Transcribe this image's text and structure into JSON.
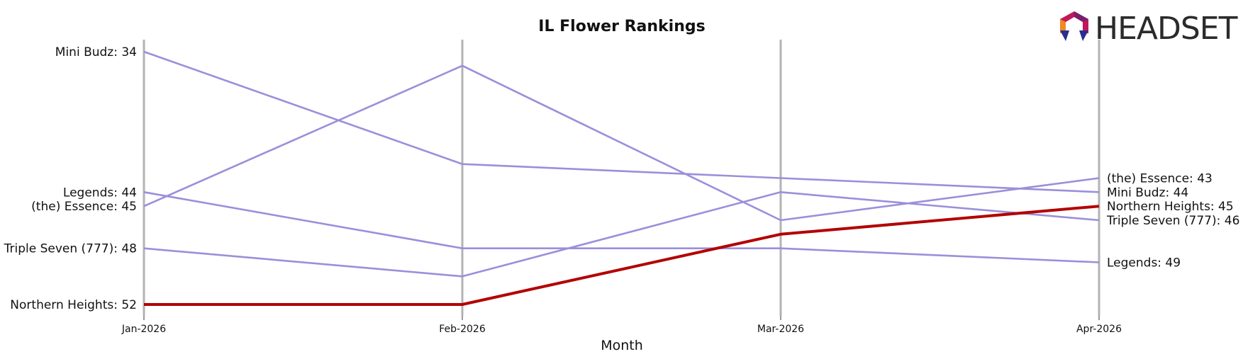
{
  "chart_data": {
    "type": "line",
    "title": "IL Flower Rankings",
    "xlabel": "Month",
    "ylabel": "",
    "categories": [
      "Jan-2026",
      "Feb-2026",
      "Mar-2026",
      "Apr-2026"
    ],
    "y_inverted": true,
    "series": [
      {
        "name": "Mini Budz",
        "values": [
          34,
          42,
          43,
          44
        ],
        "color": "#9b8fdb",
        "highlight": false
      },
      {
        "name": "(the) Essence",
        "values": [
          45,
          35,
          46,
          43
        ],
        "color": "#9b8fdb",
        "highlight": false
      },
      {
        "name": "Legends",
        "values": [
          44,
          48,
          48,
          49
        ],
        "color": "#9b8fdb",
        "highlight": false
      },
      {
        "name": "Triple Seven (777)",
        "values": [
          48,
          50,
          44,
          46
        ],
        "color": "#9b8fdb",
        "highlight": false
      },
      {
        "name": "Northern Heights",
        "values": [
          52,
          52,
          47,
          45
        ],
        "color": "#b30000",
        "highlight": true
      }
    ],
    "start_labels": [
      {
        "text": "Mini Budz: 34",
        "series": 0
      },
      {
        "text": "Legends: 44",
        "series": 2
      },
      {
        "text": "(the) Essence: 45",
        "series": 1
      },
      {
        "text": "Triple Seven (777): 48",
        "series": 3
      },
      {
        "text": "Northern Heights: 52",
        "series": 4
      }
    ],
    "end_labels": [
      {
        "text": "(the) Essence: 43",
        "series": 1
      },
      {
        "text": "Mini Budz: 44",
        "series": 0
      },
      {
        "text": "Northern Heights: 45",
        "series": 4
      },
      {
        "text": "Triple Seven (777): 46",
        "series": 3
      },
      {
        "text": "Legends: 49",
        "series": 2
      }
    ],
    "grid": "vertical"
  },
  "logo": {
    "text": "HEADSET"
  }
}
